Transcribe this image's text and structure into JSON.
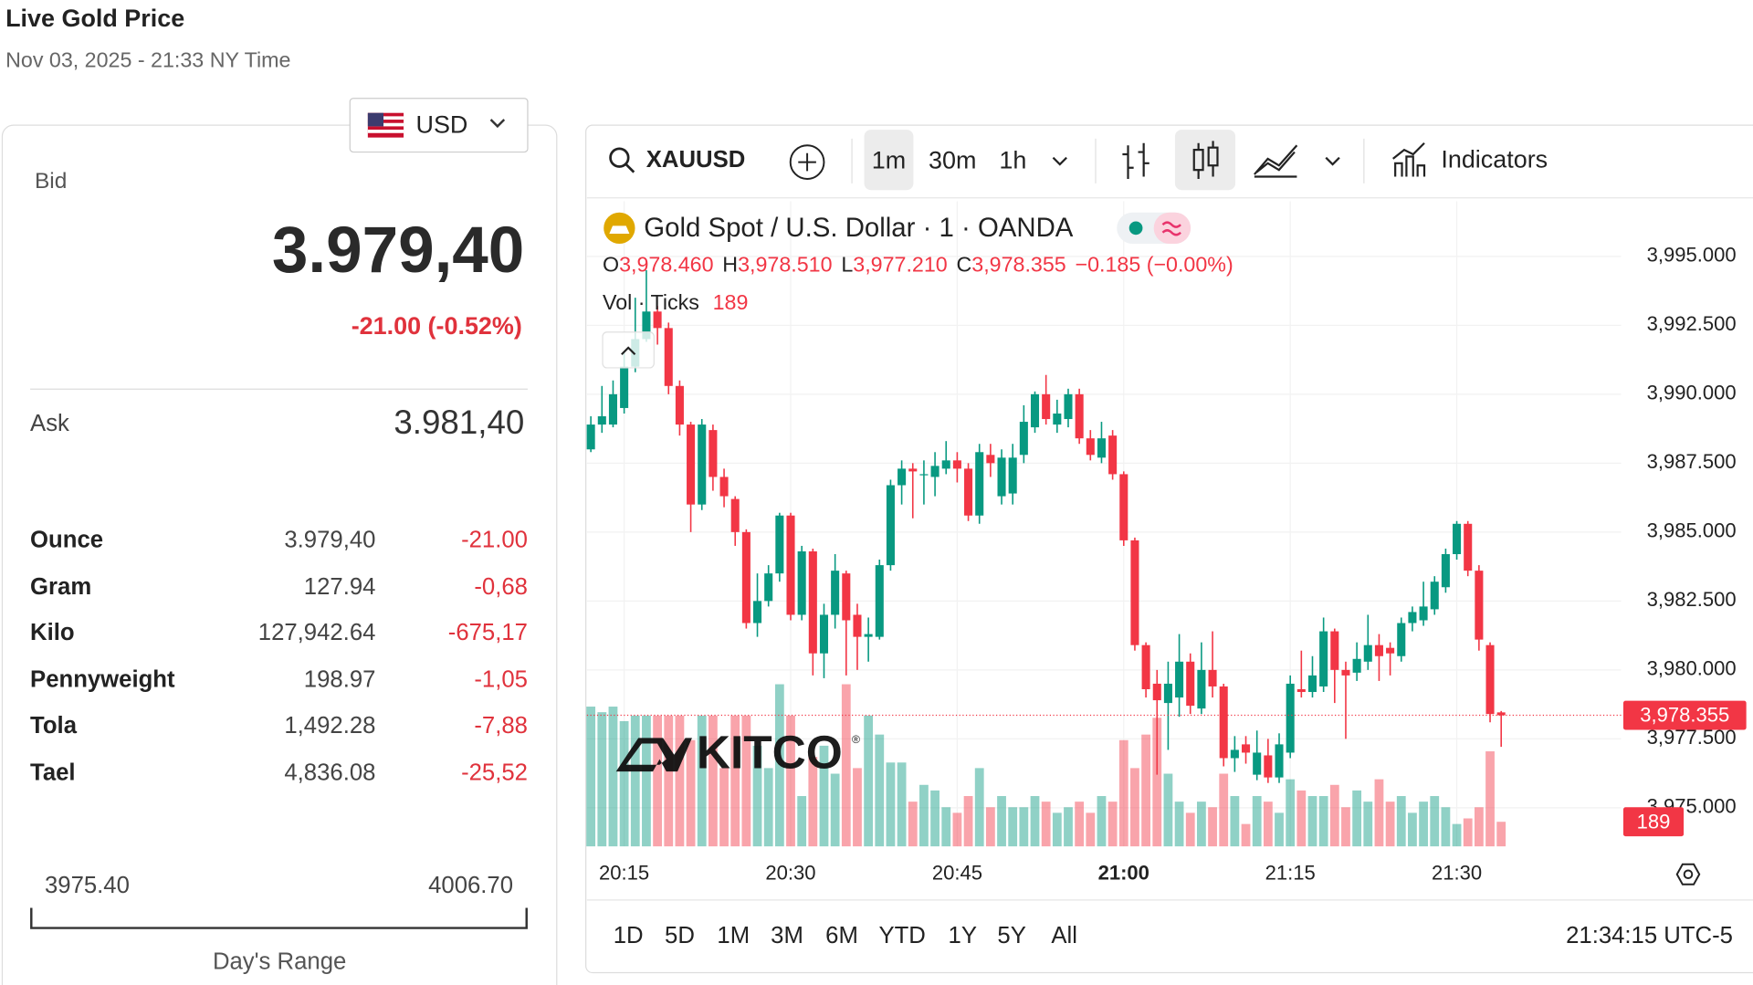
{
  "header": {
    "title": "Live Gold Price",
    "subtitle": "Nov 03, 2025 - 21:33 NY Time"
  },
  "currency": "USD",
  "quote": {
    "bid_label": "Bid",
    "bid": "3.979,40",
    "change": "-21.00 (-0.52%)",
    "ask_label": "Ask",
    "ask": "3.981,40"
  },
  "units": {
    "rows": [
      [
        "Ounce",
        "3.979,40",
        "-21.00"
      ],
      [
        "Gram",
        "127.94",
        "-0,68"
      ],
      [
        "Kilo",
        "127,942.64",
        "-675,17"
      ],
      [
        "Pennyweight",
        "198.97",
        "-1,05"
      ],
      [
        "Tola",
        "1,492.28",
        "-7,88"
      ],
      [
        "Tael",
        "4,836.08",
        "-25,52"
      ]
    ]
  },
  "range": {
    "low": "3975.40",
    "high": "4006.70",
    "label": "Day's Range"
  },
  "toolbar": {
    "symbol": "XAUUSD",
    "intervals": [
      "1m",
      "30m",
      "1h"
    ],
    "indicators": "Indicators"
  },
  "chart_data": {
    "type": "candlestick",
    "title": "Gold Spot / U.S. Dollar · 1 · OANDA",
    "ohlc_legend": {
      "o": "O",
      "o_value": "3,978.460",
      "h": "H",
      "h_value": "3,978.510",
      "l": "L",
      "l_value": "3,977.210",
      "c": "C",
      "c_value": "3,978.355",
      "change": "−0.185 (−0.00%)"
    },
    "volume_title": "Vol · Ticks",
    "volume_legend": "189",
    "last_price_label": "3,978.355",
    "last_volume_label": "189",
    "watermark": "KITCO",
    "watermark_mark": "®",
    "up_color": "#089981",
    "down_color": "#f23645",
    "categories": [
      null,
      null,
      null,
      "20:15",
      null,
      null,
      null,
      null,
      null,
      null,
      null,
      null,
      null,
      null,
      null,
      null,
      null,
      null,
      "20:30",
      null,
      null,
      null,
      null,
      null,
      null,
      null,
      null,
      null,
      null,
      null,
      null,
      null,
      null,
      "20:45",
      null,
      null,
      null,
      null,
      null,
      null,
      null,
      null,
      null,
      null,
      null,
      null,
      null,
      null,
      "21:00",
      null,
      null,
      null,
      null,
      null,
      null,
      null,
      null,
      null,
      null,
      null,
      null,
      null,
      null,
      "21:15",
      null,
      null,
      null,
      null,
      null,
      null,
      null,
      null,
      null,
      null,
      null,
      null,
      null,
      null,
      "21:30",
      null,
      null,
      null,
      null
    ],
    "open": [
      3988.0,
      3988.9,
      3988.9,
      3989.5,
      3991.0,
      3992.0,
      3993.0,
      3992.4,
      3990.3,
      3988.9,
      3986.0,
      3988.7,
      3987.0,
      3986.2,
      3985.0,
      3981.7,
      3982.5,
      3983.5,
      3985.6,
      3982.0,
      3984.3,
      3980.6,
      3982.0,
      3983.5,
      3982.0,
      3981.2,
      3981.2,
      3983.8,
      3986.7,
      3987.3,
      3987.1,
      3987.0,
      3987.3,
      3987.6,
      3987.3,
      3985.6,
      3987.8,
      3986.3,
      3986.4,
      3987.8,
      3988.8,
      3990.0,
      3988.9,
      3989.1,
      3990.0,
      3988.4,
      3987.7,
      3988.5,
      3987.1,
      3984.7,
      3980.9,
      3979.5,
      3978.8,
      3979.0,
      3980.3,
      3978.6,
      3980.0,
      3979.4,
      3976.8,
      3977.3,
      3976.2,
      3976.9,
      3976.1,
      3977.0,
      3979.3,
      3979.2,
      3979.4,
      3981.4,
      3980.0,
      3979.9,
      3980.3,
      3980.9,
      3980.8,
      3980.5,
      3981.7,
      3981.8,
      3982.2,
      3983.0,
      3984.2,
      3985.3,
      3983.6,
      3980.9,
      3978.46
    ],
    "high": [
      3989.2,
      3990.3,
      3990.5,
      3991.5,
      3993.5,
      3994.5,
      3993.2,
      3992.6,
      3990.5,
      3989.0,
      3989.1,
      3988.9,
      3987.3,
      3986.3,
      3985.1,
      3983.5,
      3983.8,
      3985.7,
      3985.7,
      3984.5,
      3984.4,
      3982.4,
      3984.2,
      3983.6,
      3982.4,
      3981.9,
      3984.0,
      3986.9,
      3987.6,
      3987.5,
      3987.6,
      3987.9,
      3988.3,
      3987.9,
      3987.5,
      3988.2,
      3988.2,
      3988.0,
      3988.2,
      3989.6,
      3990.1,
      3990.7,
      3989.8,
      3990.2,
      3990.2,
      3988.7,
      3989.0,
      3988.7,
      3987.2,
      3984.8,
      3981.0,
      3980.0,
      3980.3,
      3981.3,
      3980.6,
      3981.0,
      3981.4,
      3979.5,
      3977.6,
      3977.6,
      3977.8,
      3977.5,
      3977.7,
      3979.8,
      3980.7,
      3980.5,
      3981.9,
      3981.5,
      3980.3,
      3981.0,
      3982.0,
      3981.3,
      3981.0,
      3981.9,
      3982.3,
      3983.2,
      3983.4,
      3984.4,
      3985.4,
      3985.4,
      3983.8,
      3981.0,
      3978.51
    ],
    "low": [
      3987.9,
      3988.6,
      3988.8,
      3989.3,
      3990.8,
      3991.9,
      3991.8,
      3990.0,
      3988.5,
      3985.0,
      3985.8,
      3986.5,
      3985.9,
      3984.5,
      3981.5,
      3981.2,
      3982.3,
      3983.2,
      3981.8,
      3981.8,
      3979.8,
      3979.7,
      3981.5,
      3979.8,
      3980.0,
      3980.3,
      3981.1,
      3983.6,
      3986.0,
      3985.5,
      3986.0,
      3986.3,
      3987.1,
      3986.8,
      3985.4,
      3985.3,
      3987.0,
      3986.0,
      3986.0,
      3987.5,
      3988.6,
      3988.9,
      3988.6,
      3988.8,
      3988.2,
      3987.6,
      3987.5,
      3986.9,
      3984.5,
      3980.7,
      3979.0,
      3976.2,
      3977.1,
      3978.3,
      3978.4,
      3978.4,
      3979.0,
      3976.5,
      3976.3,
      3976.6,
      3976.0,
      3975.9,
      3975.9,
      3976.8,
      3979.0,
      3979.0,
      3979.2,
      3978.8,
      3977.5,
      3979.6,
      3980.0,
      3979.6,
      3979.8,
      3980.3,
      3981.4,
      3981.6,
      3982.0,
      3982.8,
      3984.0,
      3983.4,
      3980.7,
      3978.1,
      3977.21
    ],
    "close": [
      3988.9,
      3989.2,
      3990.0,
      3991.0,
      3992.0,
      3993.0,
      3992.4,
      3990.3,
      3988.9,
      3986.0,
      3988.9,
      3987.0,
      3986.3,
      3985.0,
      3981.7,
      3982.5,
      3983.5,
      3985.6,
      3982.0,
      3984.3,
      3980.6,
      3982.0,
      3983.6,
      3981.8,
      3981.2,
      3981.3,
      3983.8,
      3986.7,
      3987.3,
      3987.2,
      3987.1,
      3987.4,
      3987.6,
      3987.3,
      3985.6,
      3987.9,
      3987.5,
      3987.7,
      3987.7,
      3989.0,
      3990.0,
      3989.1,
      3989.3,
      3990.0,
      3988.4,
      3987.8,
      3988.4,
      3987.1,
      3984.7,
      3980.9,
      3979.3,
      3978.9,
      3979.5,
      3980.3,
      3978.7,
      3980.0,
      3979.4,
      3976.8,
      3977.1,
      3977.0,
      3977.0,
      3976.1,
      3977.3,
      3979.5,
      3979.2,
      3979.8,
      3981.4,
      3980.0,
      3979.8,
      3980.4,
      3980.9,
      3980.5,
      3980.6,
      3981.7,
      3982.1,
      3982.3,
      3983.2,
      3984.2,
      3985.3,
      3983.6,
      3981.1,
      3978.4,
      3978.355
    ],
    "volume": [
      1075,
      1032,
      1075,
      963,
      1006,
      1006,
      1006,
      1006,
      1006,
      817,
      1006,
      1006,
      602,
      1006,
      1006,
      774,
      602,
      1247,
      1006,
      387,
      688,
      774,
      559,
      1247,
      602,
      1006,
      860,
      645,
      645,
      344,
      473,
      430,
      301,
      258,
      387,
      602,
      301,
      387,
      301,
      301,
      387,
      344,
      258,
      301,
      344,
      258,
      387,
      344,
      817,
      602,
      860,
      989,
      559,
      344,
      258,
      344,
      301,
      559,
      387,
      172,
      387,
      344,
      258,
      516,
      430,
      387,
      387,
      473,
      301,
      430,
      344,
      516,
      344,
      387,
      258,
      344,
      387,
      301,
      172,
      215,
      301,
      731,
      189
    ],
    "ylim": [
      3973.6,
      3997.0
    ],
    "yticks": [
      {
        "value": 3975,
        "label": "3,975.000"
      },
      {
        "value": 3977.5,
        "label": "3,977.500"
      },
      {
        "value": 3980,
        "label": "3,980.000"
      },
      {
        "value": 3982.5,
        "label": "3,982.500"
      },
      {
        "value": 3985,
        "label": "3,985.000"
      },
      {
        "value": 3987.5,
        "label": "3,987.500"
      },
      {
        "value": 3990,
        "label": "3,990.000"
      },
      {
        "value": 3992.5,
        "label": "3,992.500"
      },
      {
        "value": 3995,
        "label": "3,995.000"
      }
    ],
    "grid": true
  },
  "footer": {
    "ranges": [
      "1D",
      "5D",
      "1M",
      "3M",
      "6M",
      "YTD",
      "1Y",
      "5Y",
      "All"
    ],
    "clock": "21:34:15 UTC-5"
  }
}
